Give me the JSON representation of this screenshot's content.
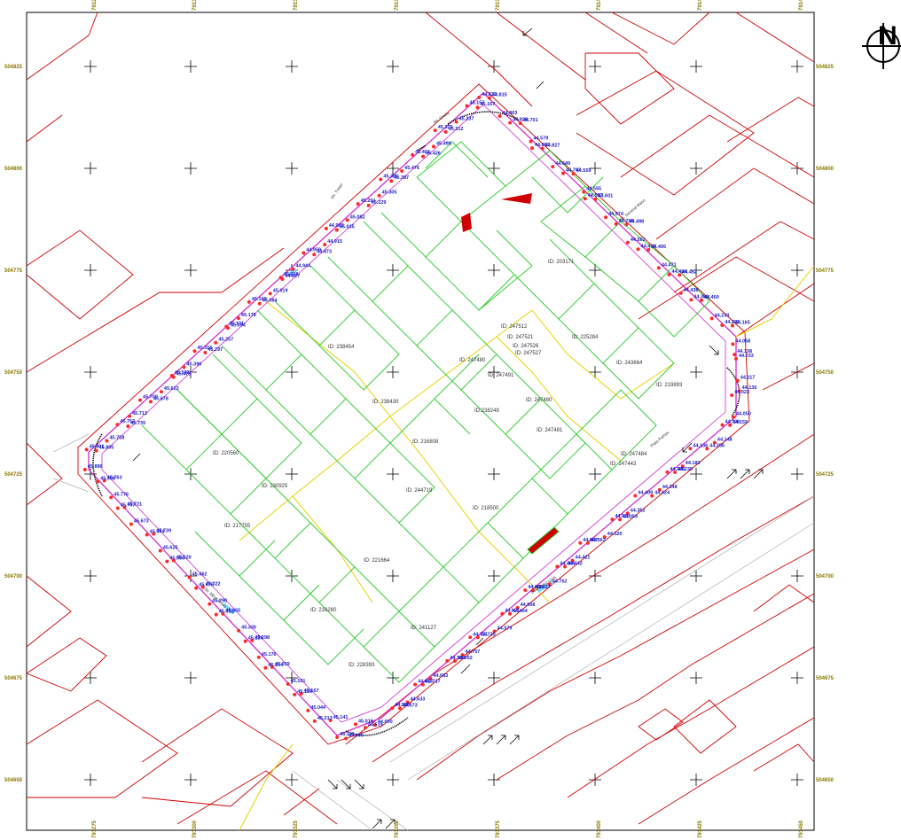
{
  "grid_coords": {
    "left": [
      "504825",
      "504800",
      "504775",
      "504750",
      "504725",
      "504700",
      "504675",
      "504650"
    ],
    "right": [
      "504825",
      "504800",
      "504775",
      "504750",
      "504725",
      "504700",
      "504675",
      "504650"
    ],
    "top": [
      "791275",
      "791300",
      "791325",
      "791350",
      "791375",
      "791400",
      "791425",
      "791450"
    ],
    "bottom": [
      "791275",
      "791300",
      "791325",
      "791350",
      "791375",
      "791400",
      "791425",
      "791450"
    ]
  },
  "north_arrow": {
    "letter": "N"
  },
  "parcel_ids": [
    "ID: 238454",
    "ID: 238430",
    "ID: 230925",
    "ID: 220560",
    "ID: 217755",
    "ID: 221664",
    "ID: 216280",
    "ID: 241127",
    "ID: 228393",
    "ID: 244719",
    "ID: 216808",
    "ID: 218500",
    "ID:238249",
    "ID: 247480",
    "ID: 247491",
    "ID: 247480",
    "ID: 247481",
    "ID: 203171",
    "ID: 225284",
    "ID: 243664",
    "ID: 219893",
    "ID: 247512",
    "ID: 247521",
    "ID: 247526",
    "ID: 247527",
    "ID: 247484",
    "ID: 247443"
  ],
  "elevations": [
    "44.833",
    "44.815",
    "44.863",
    "44.828",
    "44.701",
    "44.579",
    "44.802",
    "44.827",
    "44.649",
    "44.797",
    "44.559",
    "44.555",
    "44.557",
    "44.601",
    "44.574",
    "44.706",
    "44.498",
    "44.562",
    "44.410",
    "44.495",
    "44.471",
    "44.484",
    "44.452",
    "44.438",
    "44.360",
    "44.400",
    "44.233",
    "44.281",
    "44.165",
    "44.058",
    "44.138",
    "44.033",
    "44.117",
    "44.136",
    "44.023",
    "44.050",
    "44.159",
    "44.136",
    "44.148",
    "44.256",
    "44.106",
    "44.183",
    "44.239",
    "44.306",
    "44.348",
    "44.424",
    "44.409",
    "44.352",
    "44.359",
    "44.510",
    "44.520",
    "44.563",
    "44.507",
    "44.421",
    "44.442",
    "44.464",
    "44.762",
    "44.827",
    "44.658",
    "44.508",
    "44.494",
    "44.621",
    "44.579",
    "44.725",
    "44.721",
    "44.757",
    "44.652",
    "44.784",
    "44.683",
    "44.717",
    "44.613",
    "44.633",
    "44.573",
    "44.586",
    "44.600",
    "44.519",
    "45.016",
    "45.006",
    "45.110",
    "45.141",
    "45.213",
    "45.044",
    "45.167",
    "45.139",
    "45.101",
    "45.059",
    "45.204",
    "45.176",
    "45.298",
    "45.226",
    "45.326",
    "45.355",
    "45.412",
    "45.290",
    "45.322",
    "45.475",
    "45.462",
    "45.520",
    "45.566",
    "45.625",
    "45.739",
    "45.574",
    "45.673",
    "45.721",
    "45.797",
    "45.776",
    "45.763",
    "45.908",
    "45.896",
    "45.901",
    "45.805",
    "45.758",
    "45.762",
    "45.735",
    "45.713",
    "45.700",
    "45.678",
    "45.622",
    "45.533",
    "45.475",
    "45.396",
    "45.315",
    "45.297",
    "45.257",
    "45.101",
    "45.094",
    "45.178",
    "45.160",
    "45.084",
    "45.019",
    "45.018",
    "44.927",
    "44.944",
    "44.959",
    "44.873",
    "44.915",
    "44.980",
    "45.035",
    "45.082",
    "45.201",
    "45.229",
    "45.305",
    "45.385",
    "45.387",
    "45.476",
    "45.461",
    "45.426",
    "45.498",
    "45.375",
    "45.312",
    "45.237",
    "45.157",
    "45.167"
  ],
  "street_names": [
    "Str. Sinaia",
    "Str. General Mano",
    "Piata Puthos",
    "Bulevardul Unirii",
    "Str. Mihai Bravu",
    "Str. Traian"
  ]
}
